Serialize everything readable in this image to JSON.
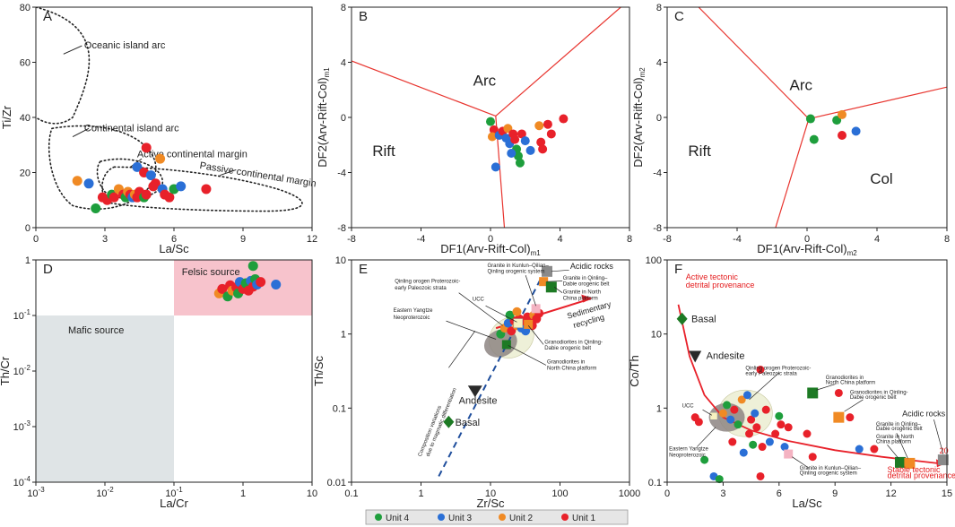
{
  "colors": {
    "unit4": "#1e9e3c",
    "unit3": "#2a6fd6",
    "unit2": "#f08a24",
    "unit1": "#e8212a",
    "line": "#e8352f",
    "felsic": "#f7c3cc",
    "mafic": "#dfe4e6",
    "gray": "#8a8a8a",
    "darkgreen": "#1d7a24"
  },
  "legend": {
    "items": [
      {
        "key": "unit4",
        "label": "Unit 4"
      },
      {
        "key": "unit3",
        "label": "Unit 3"
      },
      {
        "key": "unit2",
        "label": "Unit 2"
      },
      {
        "key": "unit1",
        "label": "Unit 1"
      }
    ]
  },
  "chart_data": [
    {
      "id": "A",
      "type": "scatter",
      "panel_letter": "A",
      "xlabel": "La/Sc",
      "ylabel": "Ti/Zr",
      "xlim": [
        0,
        12
      ],
      "ylim": [
        0,
        80
      ],
      "xticks": [
        0,
        3,
        6,
        9,
        12
      ],
      "yticks": [
        0,
        20,
        40,
        60,
        80
      ],
      "annotations": {
        "oceanic": "Oceanic island arc",
        "continental": "Continental island arc",
        "active": "Active continental margin",
        "passive": "Passive continental margin"
      },
      "points": [
        {
          "x": 1.8,
          "y": 17,
          "u": "unit2"
        },
        {
          "x": 2.3,
          "y": 16,
          "u": "unit3"
        },
        {
          "x": 2.6,
          "y": 7,
          "u": "unit4"
        },
        {
          "x": 2.9,
          "y": 11,
          "u": "unit1"
        },
        {
          "x": 3.1,
          "y": 10,
          "u": "unit1"
        },
        {
          "x": 3.3,
          "y": 12,
          "u": "unit4"
        },
        {
          "x": 3.4,
          "y": 11,
          "u": "unit1"
        },
        {
          "x": 3.6,
          "y": 14,
          "u": "unit2"
        },
        {
          "x": 3.8,
          "y": 12,
          "u": "unit1"
        },
        {
          "x": 3.9,
          "y": 11,
          "u": "unit4"
        },
        {
          "x": 4.0,
          "y": 13,
          "u": "unit2"
        },
        {
          "x": 4.1,
          "y": 12,
          "u": "unit1"
        },
        {
          "x": 4.2,
          "y": 11,
          "u": "unit3"
        },
        {
          "x": 4.3,
          "y": 12,
          "u": "unit2"
        },
        {
          "x": 4.4,
          "y": 11,
          "u": "unit1"
        },
        {
          "x": 4.5,
          "y": 13,
          "u": "unit1"
        },
        {
          "x": 4.6,
          "y": 12,
          "u": "unit1"
        },
        {
          "x": 4.7,
          "y": 11,
          "u": "unit4"
        },
        {
          "x": 4.8,
          "y": 12,
          "u": "unit1"
        },
        {
          "x": 4.4,
          "y": 22,
          "u": "unit3"
        },
        {
          "x": 4.7,
          "y": 20,
          "u": "unit1"
        },
        {
          "x": 4.8,
          "y": 29,
          "u": "unit1"
        },
        {
          "x": 5.0,
          "y": 19,
          "u": "unit3"
        },
        {
          "x": 5.2,
          "y": 16,
          "u": "unit1"
        },
        {
          "x": 5.1,
          "y": 15,
          "u": "unit1"
        },
        {
          "x": 5.4,
          "y": 25,
          "u": "unit2"
        },
        {
          "x": 5.5,
          "y": 14,
          "u": "unit3"
        },
        {
          "x": 5.6,
          "y": 12,
          "u": "unit1"
        },
        {
          "x": 5.8,
          "y": 11,
          "u": "unit1"
        },
        {
          "x": 6.0,
          "y": 14,
          "u": "unit4"
        },
        {
          "x": 6.3,
          "y": 15,
          "u": "unit3"
        },
        {
          "x": 7.4,
          "y": 14,
          "u": "unit1"
        }
      ]
    },
    {
      "id": "B",
      "type": "scatter",
      "panel_letter": "B",
      "xlabel": "DF1(Arv-Rift-Col)",
      "xlabel_sub": "m1",
      "ylabel": "DF2(Arv-Rift-Col)",
      "ylabel_sub": "m1",
      "xlim": [
        -8,
        8
      ],
      "ylim": [
        -8,
        8
      ],
      "xticks": [
        -8,
        -4,
        0,
        4,
        8
      ],
      "yticks": [
        -8,
        -4,
        0,
        4,
        8
      ],
      "fields": {
        "arc": "Arc",
        "rift": "Rift"
      },
      "points": [
        {
          "x": 0.0,
          "y": -0.3,
          "u": "unit4"
        },
        {
          "x": 0.2,
          "y": -0.9,
          "u": "unit1"
        },
        {
          "x": 0.1,
          "y": -1.4,
          "u": "unit2"
        },
        {
          "x": 0.5,
          "y": -1.3,
          "u": "unit3"
        },
        {
          "x": 0.7,
          "y": -1.0,
          "u": "unit1"
        },
        {
          "x": 0.9,
          "y": -1.5,
          "u": "unit3"
        },
        {
          "x": 1.0,
          "y": -0.8,
          "u": "unit2"
        },
        {
          "x": 1.1,
          "y": -1.9,
          "u": "unit3"
        },
        {
          "x": 1.3,
          "y": -1.2,
          "u": "unit1"
        },
        {
          "x": 1.4,
          "y": -1.6,
          "u": "unit1"
        },
        {
          "x": 1.5,
          "y": -2.3,
          "u": "unit4"
        },
        {
          "x": 1.6,
          "y": -2.8,
          "u": "unit4"
        },
        {
          "x": 1.7,
          "y": -3.3,
          "u": "unit4"
        },
        {
          "x": 1.2,
          "y": -2.6,
          "u": "unit3"
        },
        {
          "x": 1.8,
          "y": -1.2,
          "u": "unit1"
        },
        {
          "x": 2.0,
          "y": -1.7,
          "u": "unit3"
        },
        {
          "x": 2.3,
          "y": -2.4,
          "u": "unit3"
        },
        {
          "x": 2.8,
          "y": -0.6,
          "u": "unit2"
        },
        {
          "x": 2.9,
          "y": -1.8,
          "u": "unit1"
        },
        {
          "x": 3.0,
          "y": -2.3,
          "u": "unit1"
        },
        {
          "x": 3.3,
          "y": -0.5,
          "u": "unit1"
        },
        {
          "x": 3.5,
          "y": -1.2,
          "u": "unit1"
        },
        {
          "x": 4.2,
          "y": -0.1,
          "u": "unit1"
        },
        {
          "x": 0.3,
          "y": -3.6,
          "u": "unit3"
        }
      ]
    },
    {
      "id": "C",
      "type": "scatter",
      "panel_letter": "C",
      "xlabel": "DF1(Arv-Rift-Col)",
      "xlabel_sub": "m2",
      "ylabel": "DF2(Arv-Rift-Col)",
      "ylabel_sub": "m2",
      "xlim": [
        -8,
        8
      ],
      "ylim": [
        -8,
        8
      ],
      "xticks": [
        -8,
        -4,
        0,
        4,
        8
      ],
      "yticks": [
        -8,
        -4,
        0,
        4,
        8
      ],
      "fields": {
        "arc": "Arc",
        "rift": "Rift",
        "col": "Col"
      },
      "points": [
        {
          "x": 0.2,
          "y": -0.1,
          "u": "unit4"
        },
        {
          "x": 0.4,
          "y": -1.6,
          "u": "unit4"
        },
        {
          "x": 1.7,
          "y": -0.2,
          "u": "unit4"
        },
        {
          "x": 2.0,
          "y": 0.2,
          "u": "unit2"
        },
        {
          "x": 2.0,
          "y": -1.3,
          "u": "unit1"
        },
        {
          "x": 2.8,
          "y": -1.0,
          "u": "unit3"
        }
      ]
    },
    {
      "id": "D",
      "type": "scatter",
      "panel_letter": "D",
      "xlabel": "La/Cr",
      "ylabel": "Th/Cr",
      "xscale": "log",
      "yscale": "log",
      "xlim": [
        0.001,
        10
      ],
      "ylim": [
        0.0001,
        1
      ],
      "xticks": [
        {
          "v": 0.001,
          "base": "10",
          "exp": "-3"
        },
        {
          "v": 0.01,
          "base": "10",
          "exp": "-2"
        },
        {
          "v": 0.1,
          "base": "10",
          "exp": "-1"
        },
        {
          "v": 1,
          "label": "1"
        },
        {
          "v": 10,
          "label": "10"
        }
      ],
      "yticks": [
        {
          "v": 0.0001,
          "base": "10",
          "exp": "-4"
        },
        {
          "v": 0.001,
          "base": "10",
          "exp": "-3"
        },
        {
          "v": 0.01,
          "base": "10",
          "exp": "-2"
        },
        {
          "v": 0.1,
          "base": "10",
          "exp": "-1"
        },
        {
          "v": 1,
          "label": "1"
        }
      ],
      "fields": {
        "felsic": "Felsic source",
        "mafic": "Mafic source"
      },
      "points": [
        {
          "x": 0.45,
          "y": 0.25,
          "u": "unit2"
        },
        {
          "x": 0.5,
          "y": 0.3,
          "u": "unit1"
        },
        {
          "x": 0.6,
          "y": 0.22,
          "u": "unit4"
        },
        {
          "x": 0.65,
          "y": 0.35,
          "u": "unit1"
        },
        {
          "x": 0.7,
          "y": 0.28,
          "u": "unit2"
        },
        {
          "x": 0.8,
          "y": 0.32,
          "u": "unit1"
        },
        {
          "x": 0.85,
          "y": 0.25,
          "u": "unit4"
        },
        {
          "x": 0.9,
          "y": 0.4,
          "u": "unit3"
        },
        {
          "x": 1.0,
          "y": 0.3,
          "u": "unit1"
        },
        {
          "x": 1.1,
          "y": 0.38,
          "u": "unit4"
        },
        {
          "x": 1.2,
          "y": 0.28,
          "u": "unit1"
        },
        {
          "x": 1.3,
          "y": 0.42,
          "u": "unit3"
        },
        {
          "x": 1.4,
          "y": 0.33,
          "u": "unit1"
        },
        {
          "x": 1.5,
          "y": 0.45,
          "u": "unit4"
        },
        {
          "x": 1.6,
          "y": 0.36,
          "u": "unit3"
        },
        {
          "x": 1.4,
          "y": 0.78,
          "u": "unit4"
        },
        {
          "x": 1.8,
          "y": 0.4,
          "u": "unit1"
        },
        {
          "x": 3.0,
          "y": 0.36,
          "u": "unit3"
        }
      ]
    },
    {
      "id": "E",
      "type": "scatter",
      "panel_letter": "E",
      "xlabel": "Zr/Sc",
      "ylabel": "Th/Sc",
      "xscale": "log",
      "yscale": "log",
      "xlim": [
        0.1,
        1000
      ],
      "ylim": [
        0.01,
        10
      ],
      "xticks": [
        {
          "v": 0.1,
          "label": "0.1"
        },
        {
          "v": 1,
          "label": "1"
        },
        {
          "v": 10,
          "label": "10"
        },
        {
          "v": 100,
          "label": "100"
        },
        {
          "v": 1000,
          "label": "1000"
        }
      ],
      "yticks": [
        {
          "v": 0.01,
          "label": "0.01"
        },
        {
          "v": 0.1,
          "label": "0.1"
        },
        {
          "v": 1,
          "label": "1"
        },
        {
          "v": 10,
          "label": "10"
        }
      ],
      "annotations": {
        "acidic": "Acidic rocks",
        "kunlun1": "Granite in Kunlun–Qilian–",
        "kunlun2": "Qinling orogenic system",
        "qdab1": "Granite in Qinling–",
        "qdab2": "Dabie orogenic belt",
        "gnc1": "Granite in North",
        "gnc2": "China platform",
        "qop1": "Qinling orogen Proterozoic-",
        "qop2": "early Paleozoic strata",
        "ucc": "UCC",
        "eyn1": "Eastern Yangtze",
        "eyn2": "Neoproterozoic",
        "sed1": "Sedimentary",
        "sed2": "recycling",
        "grq1": "Granodiorites  in Qinling-",
        "grq2": "Dabie orogenic  belt",
        "grn1": "Granodiorites in",
        "grn2": "North China platform",
        "andesite": "Andesite",
        "basal": "Basal",
        "comp1": "Composition variations",
        "comp2": "due to magmatic differentiation"
      },
      "points": [
        {
          "x": 14,
          "y": 1.0,
          "u": "unit4"
        },
        {
          "x": 16,
          "y": 1.2,
          "u": "unit2"
        },
        {
          "x": 18,
          "y": 1.4,
          "u": "unit3"
        },
        {
          "x": 20,
          "y": 1.1,
          "u": "unit1"
        },
        {
          "x": 22,
          "y": 1.5,
          "u": "unit1"
        },
        {
          "x": 24,
          "y": 1.3,
          "u": "unit2"
        },
        {
          "x": 26,
          "y": 1.6,
          "u": "unit1"
        },
        {
          "x": 28,
          "y": 1.2,
          "u": "unit3"
        },
        {
          "x": 30,
          "y": 1.5,
          "u": "unit1"
        },
        {
          "x": 34,
          "y": 1.7,
          "u": "unit1"
        },
        {
          "x": 38,
          "y": 1.4,
          "u": "unit1"
        },
        {
          "x": 42,
          "y": 1.8,
          "u": "unit2"
        },
        {
          "x": 46,
          "y": 1.6,
          "u": "unit1"
        },
        {
          "x": 50,
          "y": 1.9,
          "u": "unit1"
        },
        {
          "x": 19,
          "y": 1.8,
          "u": "unit4"
        },
        {
          "x": 24,
          "y": 2.0,
          "u": "unit2"
        },
        {
          "x": 32,
          "y": 1.1,
          "u": "unit3"
        },
        {
          "x": 40,
          "y": 1.3,
          "u": "unit1"
        }
      ]
    },
    {
      "id": "F",
      "type": "scatter",
      "panel_letter": "F",
      "xlabel": "La/Sc",
      "ylabel": "Co/Th",
      "yscale": "log",
      "xlim": [
        0,
        15
      ],
      "ylim": [
        0.1,
        100
      ],
      "xticks": [
        0,
        3,
        6,
        9,
        12,
        15
      ],
      "yticks": [
        {
          "v": 0.1,
          "label": "0.1"
        },
        {
          "v": 1,
          "label": "1"
        },
        {
          "v": 10,
          "label": "10"
        },
        {
          "v": 100,
          "label": "100"
        }
      ],
      "annotations": {
        "active1": "Active tectonic",
        "active2": "detrital provenance",
        "stable1": "Stable tectonic",
        "stable2": "detrital provenance",
        "basal": "Basal",
        "andesite": "Andesite",
        "qop1": "Qinling orogen Proterozoic-",
        "qop2": "early Paleozoic strata",
        "ucc": "UCC",
        "gnc1": "Granodiorites in",
        "gnc2": "North China platform",
        "gqd1": "Granodiorites in Qinling-",
        "gqd2": "Dabie orogenic belt",
        "acidic": "Acidic rocks",
        "gq1": "Granite in Qinling–",
        "gq2": "Dabie orogenic belt",
        "gn1": "Granite in North",
        "gn2": "China platform",
        "gk1": "Granite in Kunlun–Qilian–",
        "gk2": "Qinling orogenic system",
        "eyn1": "Eastern Yangtze",
        "eyn2": "Neoproterozoic",
        "num": "20"
      },
      "points": [
        {
          "x": 1.5,
          "y": 0.75,
          "u": "unit1"
        },
        {
          "x": 1.7,
          "y": 0.65,
          "u": "unit1"
        },
        {
          "x": 2.0,
          "y": 0.2,
          "u": "unit4"
        },
        {
          "x": 2.5,
          "y": 0.12,
          "u": "unit3"
        },
        {
          "x": 2.8,
          "y": 0.11,
          "u": "unit4"
        },
        {
          "x": 3.0,
          "y": 0.85,
          "u": "unit2"
        },
        {
          "x": 3.2,
          "y": 1.1,
          "u": "unit4"
        },
        {
          "x": 3.4,
          "y": 0.7,
          "u": "unit3"
        },
        {
          "x": 3.5,
          "y": 0.35,
          "u": "unit1"
        },
        {
          "x": 3.6,
          "y": 0.95,
          "u": "unit1"
        },
        {
          "x": 3.8,
          "y": 0.6,
          "u": "unit4"
        },
        {
          "x": 4.0,
          "y": 1.3,
          "u": "unit2"
        },
        {
          "x": 4.1,
          "y": 0.25,
          "u": "unit3"
        },
        {
          "x": 4.3,
          "y": 1.5,
          "u": "unit3"
        },
        {
          "x": 4.4,
          "y": 0.45,
          "u": "unit1"
        },
        {
          "x": 4.5,
          "y": 0.7,
          "u": "unit1"
        },
        {
          "x": 4.6,
          "y": 0.32,
          "u": "unit4"
        },
        {
          "x": 4.7,
          "y": 0.85,
          "u": "unit3"
        },
        {
          "x": 4.8,
          "y": 0.55,
          "u": "unit1"
        },
        {
          "x": 5.0,
          "y": 3.3,
          "u": "unit1"
        },
        {
          "x": 5.1,
          "y": 0.3,
          "u": "unit1"
        },
        {
          "x": 5.0,
          "y": 0.12,
          "u": "unit1"
        },
        {
          "x": 5.3,
          "y": 0.95,
          "u": "unit1"
        },
        {
          "x": 5.5,
          "y": 0.35,
          "u": "unit3"
        },
        {
          "x": 5.8,
          "y": 0.45,
          "u": "unit1"
        },
        {
          "x": 6.1,
          "y": 0.6,
          "u": "unit1"
        },
        {
          "x": 6.3,
          "y": 0.3,
          "u": "unit3"
        },
        {
          "x": 6.5,
          "y": 0.55,
          "u": "unit1"
        },
        {
          "x": 6.0,
          "y": 0.78,
          "u": "unit4"
        },
        {
          "x": 7.8,
          "y": 0.22,
          "u": "unit1"
        },
        {
          "x": 10.3,
          "y": 0.28,
          "u": "unit3"
        },
        {
          "x": 11.1,
          "y": 0.28,
          "u": "unit1"
        },
        {
          "x": 7.5,
          "y": 0.45,
          "u": "unit1"
        },
        {
          "x": 9.2,
          "y": 1.6,
          "u": "unit1"
        },
        {
          "x": 9.8,
          "y": 0.75,
          "u": "unit1"
        }
      ]
    }
  ]
}
